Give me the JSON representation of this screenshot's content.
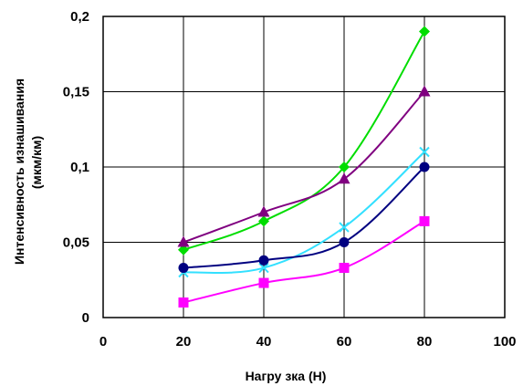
{
  "chart_data": {
    "type": "line",
    "xlabel": "Нагру зка (Н)",
    "ylabel_line1": "Интенсивность изнашивания",
    "ylabel_line2": "(мкм/км)",
    "xlim": [
      0,
      100
    ],
    "ylim": [
      0,
      0.2
    ],
    "x_ticks": [
      "0",
      "20",
      "40",
      "60",
      "80",
      "100"
    ],
    "y_ticks": [
      "0",
      "0,05",
      "0,1",
      "0,15",
      "0,2"
    ],
    "grid": true,
    "legend": "none",
    "x": [
      20,
      40,
      60,
      80
    ],
    "series": [
      {
        "color": "#00dd00",
        "marker": "diamond",
        "values": [
          0.045,
          0.064,
          0.1,
          0.19
        ]
      },
      {
        "color": "#800080",
        "marker": "triangle",
        "values": [
          0.05,
          0.07,
          0.092,
          0.15
        ]
      },
      {
        "color": "#33e0ff",
        "marker": "x",
        "values": [
          0.03,
          0.033,
          0.06,
          0.11
        ]
      },
      {
        "color": "#000080",
        "marker": "circle",
        "values": [
          0.033,
          0.038,
          0.05,
          0.1
        ]
      },
      {
        "color": "#ff00ff",
        "marker": "square",
        "values": [
          0.01,
          0.023,
          0.033,
          0.064
        ]
      }
    ]
  }
}
